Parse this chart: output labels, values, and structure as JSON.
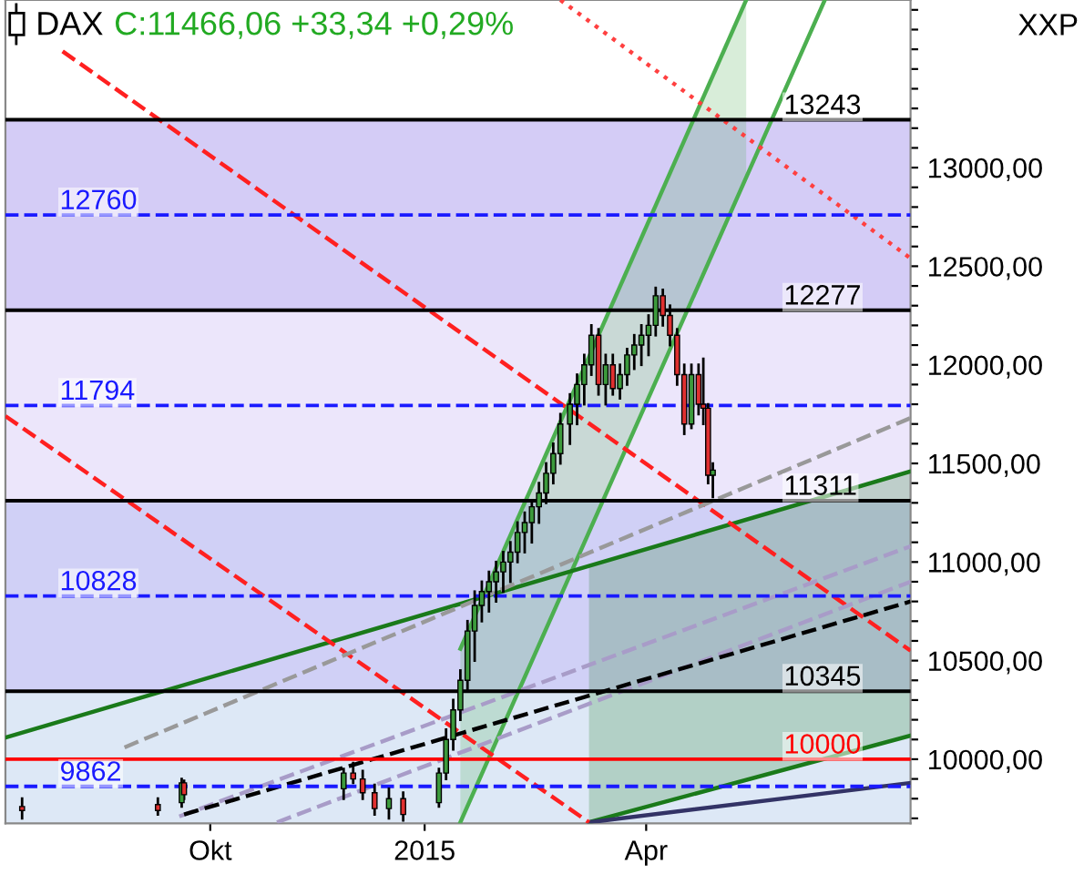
{
  "chart_data": {
    "type": "candlestick",
    "title": "DAX",
    "subtitle": "C:11466,06 +33,34 +0,29%",
    "ylabel": "XXP",
    "x": [
      "2014-07-16",
      "2014-09-11",
      "2014-09-21",
      "2014-09-22",
      "2014-11-28",
      "2014-12-02",
      "2014-12-06",
      "2014-12-11",
      "2014-12-17",
      "2014-12-23",
      "2015-01-07",
      "2015-01-10",
      "2015-01-13",
      "2015-01-16",
      "2015-01-19",
      "2015-01-22",
      "2015-01-25",
      "2015-01-28",
      "2015-01-31",
      "2015-02-03",
      "2015-02-06",
      "2015-02-09",
      "2015-02-12",
      "2015-02-15",
      "2015-02-18",
      "2015-02-21",
      "2015-02-24",
      "2015-02-27",
      "2015-03-03",
      "2015-03-06",
      "2015-03-09",
      "2015-03-12",
      "2015-03-15",
      "2015-03-18",
      "2015-03-21",
      "2015-03-24",
      "2015-03-27",
      "2015-03-30",
      "2015-04-02",
      "2015-04-05",
      "2015-04-08",
      "2015-04-11",
      "2015-04-14",
      "2015-04-17",
      "2015-04-20",
      "2015-04-23",
      "2015-04-26",
      "2015-04-28",
      "2015-04-30",
      "2015-05-02"
    ],
    "ohlc": [
      [
        9760,
        9800,
        9700,
        9740
      ],
      [
        9770,
        9800,
        9720,
        9740
      ],
      [
        9780,
        9900,
        9760,
        9880
      ],
      [
        9880,
        9890,
        9800,
        9820
      ],
      [
        9850,
        9950,
        9800,
        9930
      ],
      [
        9930,
        9980,
        9880,
        9900
      ],
      [
        9900,
        9940,
        9800,
        9830
      ],
      [
        9830,
        9870,
        9720,
        9750
      ],
      [
        9750,
        9850,
        9700,
        9800
      ],
      [
        9800,
        9830,
        9690,
        9720
      ],
      [
        9780,
        9950,
        9760,
        9930
      ],
      [
        9930,
        10150,
        9900,
        10100
      ],
      [
        10100,
        10300,
        10050,
        10250
      ],
      [
        10250,
        10450,
        10200,
        10400
      ],
      [
        10400,
        10700,
        10350,
        10650
      ],
      [
        10650,
        10850,
        10500,
        10780
      ],
      [
        10780,
        10900,
        10700,
        10850
      ],
      [
        10850,
        10950,
        10750,
        10900
      ],
      [
        10900,
        11000,
        10800,
        10950
      ],
      [
        10950,
        11050,
        10850,
        11000
      ],
      [
        11000,
        11100,
        10900,
        11050
      ],
      [
        11050,
        11200,
        11000,
        11150
      ],
      [
        11150,
        11250,
        11050,
        11200
      ],
      [
        11200,
        11300,
        11100,
        11280
      ],
      [
        11280,
        11400,
        11200,
        11350
      ],
      [
        11350,
        11500,
        11300,
        11450
      ],
      [
        11450,
        11600,
        11400,
        11550
      ],
      [
        11550,
        11750,
        11500,
        11700
      ],
      [
        11700,
        11850,
        11600,
        11800
      ],
      [
        11800,
        11950,
        11700,
        11900
      ],
      [
        11900,
        12050,
        11800,
        12000
      ],
      [
        12000,
        12200,
        11950,
        12150
      ],
      [
        12150,
        12180,
        11850,
        11900
      ],
      [
        11900,
        12050,
        11800,
        12000
      ],
      [
        12000,
        12050,
        11850,
        11880
      ],
      [
        11880,
        12000,
        11830,
        11950
      ],
      [
        11950,
        12080,
        11900,
        12050
      ],
      [
        12050,
        12150,
        11980,
        12100
      ],
      [
        12100,
        12200,
        12000,
        12150
      ],
      [
        12150,
        12250,
        12050,
        12200
      ],
      [
        12200,
        12390,
        12150,
        12350
      ],
      [
        12350,
        12380,
        12200,
        12250
      ],
      [
        12250,
        12300,
        12100,
        12150
      ],
      [
        12150,
        12180,
        11900,
        11950
      ],
      [
        11950,
        12000,
        11650,
        11700
      ],
      [
        11700,
        12000,
        11680,
        11950
      ],
      [
        11950,
        12000,
        11750,
        11800
      ],
      [
        11800,
        12030,
        11700,
        11780
      ],
      [
        11780,
        11800,
        11400,
        11440
      ],
      [
        11440,
        11500,
        11330,
        11466
      ]
    ],
    "colors": [
      "#e03030",
      "#e03030",
      "#3c9a3c",
      "#e03030",
      "#3c9a3c",
      "#e03030",
      "#e03030",
      "#e03030",
      "#3c9a3c",
      "#e03030",
      "#3c9a3c",
      "#3c9a3c",
      "#3c9a3c",
      "#3c9a3c",
      "#3c9a3c",
      "#3c9a3c",
      "#3c9a3c",
      "#3c9a3c",
      "#3c9a3c",
      "#3c9a3c",
      "#3c9a3c",
      "#3c9a3c",
      "#3c9a3c",
      "#3c9a3c",
      "#3c9a3c",
      "#3c9a3c",
      "#3c9a3c",
      "#3c9a3c",
      "#3c9a3c",
      "#3c9a3c",
      "#3c9a3c",
      "#3c9a3c",
      "#e03030",
      "#3c9a3c",
      "#e03030",
      "#3c9a3c",
      "#3c9a3c",
      "#3c9a3c",
      "#3c9a3c",
      "#3c9a3c",
      "#3c9a3c",
      "#e03030",
      "#e03030",
      "#e03030",
      "#e03030",
      "#3c9a3c",
      "#e03030",
      "#e03030",
      "#e03030",
      "#3c9a3c"
    ],
    "series": [
      {
        "type": "line",
        "x": [
          "2015-01-16",
          "2015-05-16"
        ],
        "values": [
          null,
          null
        ],
        "lower": [
          9680,
          12960
        ],
        "upper": [
          10560,
          13850
        ],
        "color": "#4caf50"
      },
      {
        "type": "line",
        "x": [
          "2015-01-16",
          "2015-05-16"
        ],
        "values": [
          10560,
          13850
        ],
        "color": "#4caf50",
        "line_style": "solid"
      },
      {
        "type": "line",
        "x": [
          "2015-01-16",
          "2015-06-18"
        ],
        "values": [
          9680,
          13850
        ],
        "color": "#4caf50",
        "line_style": "solid"
      },
      {
        "type": "line",
        "x": [
          "2014-07-09",
          "2015-03-11",
          "2015-07-24"
        ],
        "values": [
          10110,
          10980,
          11460
        ],
        "color": "#1a7a1a",
        "line_style": "solid"
      },
      {
        "type": "line",
        "x": [
          "2015-03-11",
          "2015-07-24"
        ],
        "values": [
          9680,
          10120
        ],
        "color": "#1a7a1a",
        "line_style": "solid"
      },
      {
        "type": "line",
        "x": [
          "2015-03-11",
          "2015-07-24"
        ],
        "values": [
          null,
          null
        ],
        "lower": [
          9680,
          10120
        ],
        "upper": [
          10980,
          11460
        ],
        "color": "#1a7a1a"
      },
      {
        "type": "line",
        "x": [
          "2015-03-11",
          "2015-07-24"
        ],
        "values": [
          9680,
          9880
        ],
        "color": "#333366",
        "line_style": "solid"
      },
      {
        "type": "line",
        "x": [
          "2014-07-09",
          "2015-03-11"
        ],
        "values": [
          11740,
          9680
        ],
        "color": "#ff2020",
        "line_style": "dashed"
      },
      {
        "type": "line",
        "x": [
          "2014-08-02",
          "2015-07-24"
        ],
        "values": [
          13590,
          10550
        ],
        "color": "#ff2020",
        "line_style": "dashed"
      },
      {
        "type": "line",
        "x": [
          "2015-02-27",
          "2015-07-24"
        ],
        "values": [
          13850,
          12540
        ],
        "color": "#ff4040",
        "line_style": "dotted"
      },
      {
        "type": "line",
        "x": [
          "2014-08-28",
          "2015-07-24"
        ],
        "values": [
          10060,
          11730
        ],
        "color": "#999999",
        "line_style": "dashed"
      },
      {
        "type": "line",
        "x": [
          "2014-09-20",
          "2015-07-24"
        ],
        "values": [
          9710,
          11080
        ],
        "color": "#a89cc8",
        "line_style": "dashed"
      },
      {
        "type": "line",
        "x": [
          "2014-10-31",
          "2015-07-24"
        ],
        "values": [
          9680,
          10900
        ],
        "color": "#a89cc8",
        "line_style": "dashed"
      },
      {
        "type": "line",
        "x": [
          "2014-09-22",
          "2015-07-24"
        ],
        "values": [
          9720,
          10800
        ],
        "color": "#000000",
        "line_style": "dashed"
      }
    ],
    "bands": [
      {
        "axis": "y",
        "from": 12277,
        "to": 13243,
        "color": "#d4ccf6"
      },
      {
        "axis": "y",
        "from": 11311,
        "to": 12277,
        "color": "#ece6fb"
      },
      {
        "axis": "y",
        "from": 10345,
        "to": 11311,
        "color": "#d0d0f6"
      },
      {
        "axis": "y",
        "from": 9675,
        "to": 10345,
        "color": "#dde8f6"
      }
    ],
    "ref_lines": [
      {
        "axis": "y",
        "value": 13243,
        "label": "13243",
        "color": "#000000",
        "line_style": "solid"
      },
      {
        "axis": "y",
        "value": 12760,
        "label": "12760",
        "color": "#1a1aff",
        "line_style": "dashed"
      },
      {
        "axis": "y",
        "value": 12277,
        "label": "12277",
        "color": "#000000",
        "line_style": "solid"
      },
      {
        "axis": "y",
        "value": 11794,
        "label": "11794",
        "color": "#1a1aff",
        "line_style": "dashed"
      },
      {
        "axis": "y",
        "value": 11311,
        "label": "11311",
        "color": "#000000",
        "line_style": "solid"
      },
      {
        "axis": "y",
        "value": 10828,
        "label": "10828",
        "color": "#1a1aff",
        "line_style": "dashed"
      },
      {
        "axis": "y",
        "value": 10345,
        "label": "10345",
        "color": "#000000",
        "line_style": "solid"
      },
      {
        "axis": "y",
        "value": 10000,
        "label": "10000",
        "color": "#ff0000",
        "line_style": "solid"
      },
      {
        "axis": "y",
        "value": 9862,
        "label": "9862",
        "color": "#1a1aff",
        "line_style": "dashed"
      }
    ],
    "xlim": [
      "2014-07-09",
      "2015-07-24"
    ],
    "xticks": [
      {
        "value": "2014-10-03",
        "label": "Okt"
      },
      {
        "value": "2015-01-01",
        "label": "2015"
      },
      {
        "value": "2015-04-04",
        "label": "Apr"
      }
    ],
    "ylim": [
      9675,
      13850
    ],
    "yticks": [
      {
        "value": 9700,
        "label": null
      },
      {
        "value": 9800,
        "label": null
      },
      {
        "value": 9900,
        "label": null
      },
      {
        "value": 10000,
        "label": "10000,00"
      },
      {
        "value": 10100,
        "label": null
      },
      {
        "value": 10200,
        "label": null
      },
      {
        "value": 10300,
        "label": null
      },
      {
        "value": 10400,
        "label": null
      },
      {
        "value": 10500,
        "label": "10500,00"
      },
      {
        "value": 10600,
        "label": null
      },
      {
        "value": 10700,
        "label": null
      },
      {
        "value": 10800,
        "label": null
      },
      {
        "value": 10900,
        "label": null
      },
      {
        "value": 11000,
        "label": "11000,00"
      },
      {
        "value": 11100,
        "label": null
      },
      {
        "value": 11200,
        "label": null
      },
      {
        "value": 11300,
        "label": null
      },
      {
        "value": 11400,
        "label": null
      },
      {
        "value": 11500,
        "label": "11500,00"
      },
      {
        "value": 11600,
        "label": null
      },
      {
        "value": 11700,
        "label": null
      },
      {
        "value": 11800,
        "label": null
      },
      {
        "value": 11900,
        "label": null
      },
      {
        "value": 12000,
        "label": "12000,00"
      },
      {
        "value": 12100,
        "label": null
      },
      {
        "value": 12200,
        "label": null
      },
      {
        "value": 12300,
        "label": null
      },
      {
        "value": 12400,
        "label": null
      },
      {
        "value": 12500,
        "label": "12500,00"
      },
      {
        "value": 12600,
        "label": null
      },
      {
        "value": 12700,
        "label": null
      },
      {
        "value": 12800,
        "label": null
      },
      {
        "value": 12900,
        "label": null
      },
      {
        "value": 13000,
        "label": "13000,00"
      },
      {
        "value": 13100,
        "label": null
      },
      {
        "value": 13200,
        "label": null
      },
      {
        "value": 13300,
        "label": null
      },
      {
        "value": 13400,
        "label": null
      },
      {
        "value": 13500,
        "label": null
      },
      {
        "value": 13600,
        "label": null
      },
      {
        "value": 13700,
        "label": null
      },
      {
        "value": 13800,
        "label": null
      }
    ]
  }
}
